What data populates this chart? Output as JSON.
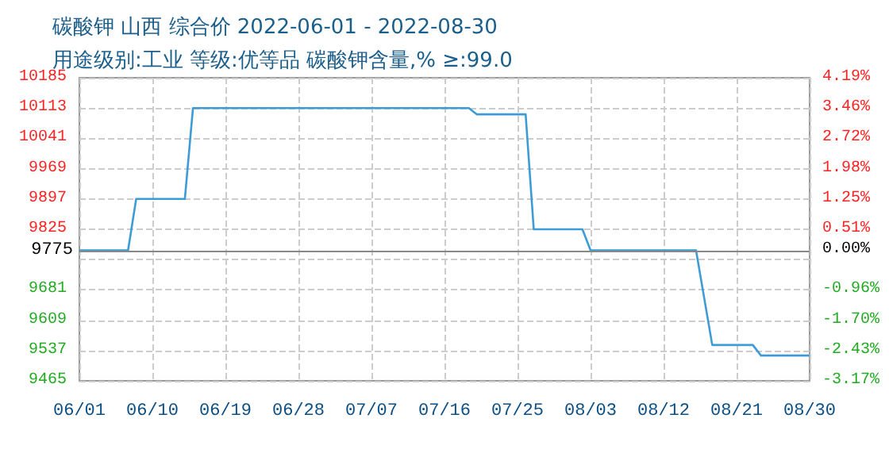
{
  "chart_data": {
    "type": "line",
    "title": "碳酸钾 山西 综合价 2022-06-01 - 2022-08-30",
    "subtitle": "用途级别:工业 等级:优等品 碳酸钾含量,% ≥:99.0",
    "x": [
      "2022-06-01",
      "2022-06-07",
      "2022-06-08",
      "2022-06-14",
      "2022-06-15",
      "2022-07-19",
      "2022-07-20",
      "2022-07-26",
      "2022-07-27",
      "2022-08-02",
      "2022-08-03",
      "2022-08-16",
      "2022-08-18",
      "2022-08-23",
      "2022-08-24",
      "2022-08-30"
    ],
    "series": [
      {
        "color": "#3d9bd6",
        "values": [
          9775,
          9775,
          9897,
          9897,
          10113,
          10113,
          10098,
          10098,
          9825,
          9825,
          9775,
          9775,
          9550,
          9550,
          9525,
          9525
        ]
      }
    ],
    "xlim": [
      "2022-06-01",
      "2022-08-30"
    ],
    "xticks": [
      {
        "value": "2022-06-01",
        "label": "06/01"
      },
      {
        "value": "2022-06-10",
        "label": "06/10"
      },
      {
        "value": "2022-06-19",
        "label": "06/19"
      },
      {
        "value": "2022-06-28",
        "label": "06/28"
      },
      {
        "value": "2022-07-07",
        "label": "07/07"
      },
      {
        "value": "2022-07-16",
        "label": "07/16"
      },
      {
        "value": "2022-07-25",
        "label": "07/25"
      },
      {
        "value": "2022-08-03",
        "label": "08/03"
      },
      {
        "value": "2022-08-12",
        "label": "08/12"
      },
      {
        "value": "2022-08-21",
        "label": "08/21"
      },
      {
        "value": "2022-08-30",
        "label": "08/30"
      }
    ],
    "ylim": [
      9465,
      10185
    ],
    "yticks": [
      9465,
      9537,
      9609,
      9681,
      {
        "value": 9753,
        "label": null
      },
      9825,
      9897,
      9969,
      10041,
      10113,
      10185
    ],
    "y2lim": [
      -3.17,
      4.19
    ],
    "y2ticks": [
      {
        "value": -3.17,
        "label": "-3.17%"
      },
      {
        "value": -2.43,
        "label": "-2.43%"
      },
      {
        "value": -1.7,
        "label": "-1.70%"
      },
      {
        "value": -0.96,
        "label": "-0.96%"
      },
      {
        "value": 0,
        "label": "0.00%"
      },
      {
        "value": 0.51,
        "label": "0.51%"
      },
      {
        "value": 1.25,
        "label": "1.25%"
      },
      {
        "value": 1.98,
        "label": "1.98%"
      },
      {
        "value": 2.72,
        "label": "2.72%"
      },
      {
        "value": 3.46,
        "label": "3.46%"
      },
      {
        "value": 4.19,
        "label": "4.19%"
      }
    ],
    "ref_lines": [
      {
        "axis": "y",
        "value": 9775,
        "label": "9775",
        "color": "#888888"
      }
    ],
    "grid": true,
    "marker": "none",
    "line_style": "solid"
  }
}
